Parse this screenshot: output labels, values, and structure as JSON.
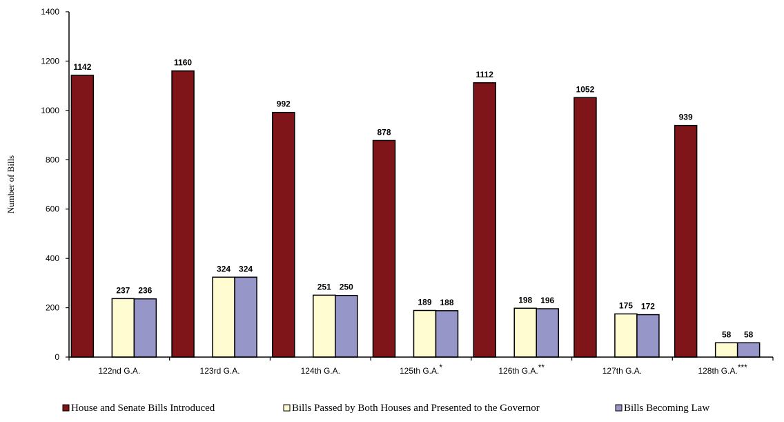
{
  "chart_data": {
    "type": "bar",
    "ylabel": "Number of Bills",
    "xlabel": "",
    "ylim": [
      0,
      1400
    ],
    "yticks": [
      0,
      200,
      400,
      600,
      800,
      1000,
      1200,
      1400
    ],
    "grid": false,
    "legend_position": "bottom",
    "categories": [
      {
        "label": "122nd G.A.",
        "suffix": ""
      },
      {
        "label": "123rd G.A.",
        "suffix": ""
      },
      {
        "label": "124th G.A.",
        "suffix": ""
      },
      {
        "label": "125th G.A.",
        "suffix": "*"
      },
      {
        "label": "126th G.A.",
        "suffix": "**"
      },
      {
        "label": "127th G.A.",
        "suffix": ""
      },
      {
        "label": "128th G.A.",
        "suffix": "***"
      }
    ],
    "series": [
      {
        "name": "House and Senate Bills Introduced",
        "color": "#7f1518",
        "values": [
          1142,
          1160,
          992,
          878,
          1112,
          1052,
          939
        ]
      },
      {
        "name": "Bills Passed by Both Houses and Presented to the Governor",
        "color": "#fffcd2",
        "values": [
          237,
          324,
          251,
          189,
          198,
          175,
          58
        ]
      },
      {
        "name": "Bills Becoming Law",
        "color": "#9696c8",
        "values": [
          236,
          324,
          250,
          188,
          196,
          172,
          58
        ]
      }
    ]
  }
}
